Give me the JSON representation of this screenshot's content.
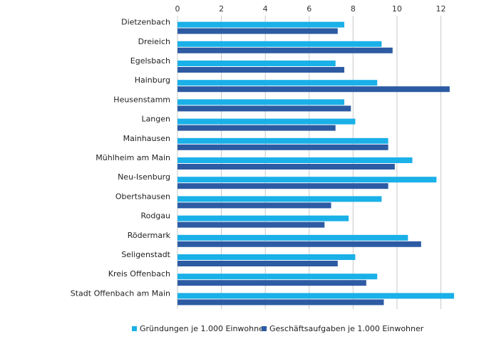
{
  "chart_data": {
    "type": "bar",
    "orientation": "horizontal",
    "categories": [
      "Dietzenbach",
      "Dreieich",
      "Egelsbach",
      "Hainburg",
      "Heusenstamm",
      "Langen",
      "Mainhausen",
      "Mühlheim am Main",
      "Neu-Isenburg",
      "Obertshausen",
      "Rodgau",
      "Rödermark",
      "Seligenstadt",
      "Kreis Offenbach",
      "Stadt Offenbach am Main"
    ],
    "series": [
      {
        "name": "Gründungen je 1.000 Einwohner",
        "color": "#1ab0e8",
        "values": [
          7.6,
          9.3,
          7.2,
          9.1,
          7.6,
          8.1,
          9.6,
          10.7,
          11.8,
          9.3,
          7.8,
          10.5,
          8.1,
          9.1,
          12.6
        ]
      },
      {
        "name": "Geschäftsaufgaben je 1.000 Einwohner",
        "color": "#2d5ba3",
        "values": [
          7.3,
          9.8,
          7.6,
          12.4,
          7.9,
          7.2,
          9.6,
          9.9,
          9.6,
          7.0,
          6.7,
          11.1,
          7.3,
          8.6,
          9.4
        ]
      }
    ],
    "xlim": [
      0,
      12.6
    ],
    "xticks": [
      "0",
      "2",
      "4",
      "6",
      "8",
      "10",
      "12"
    ],
    "xaxis_position": "top",
    "grid": "vertical",
    "legend": "bottom",
    "title": "",
    "xlabel": "",
    "ylabel": ""
  }
}
